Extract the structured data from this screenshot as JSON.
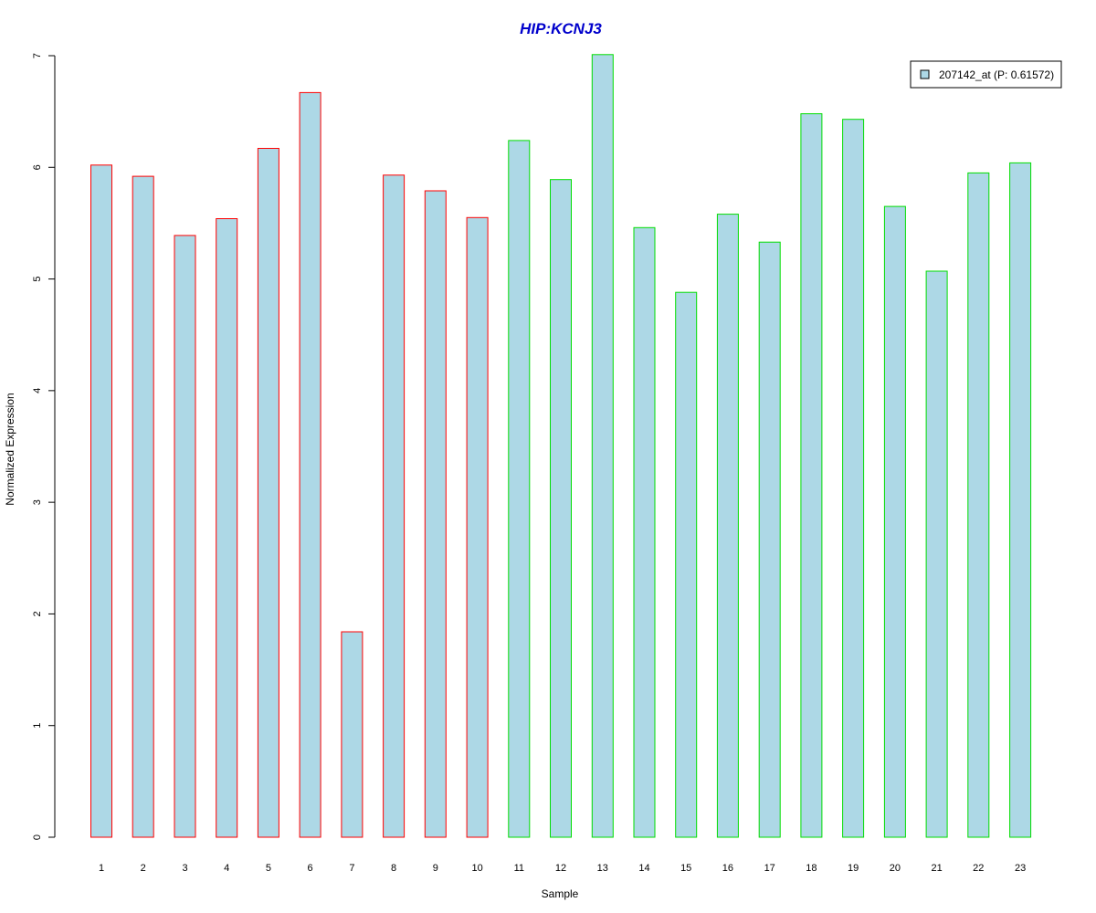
{
  "colors": {
    "title": "#0000cc",
    "bar_fill": "#add8e6",
    "group1_border": "#ff0000",
    "group2_border": "#00dd00",
    "axis": "#000000"
  },
  "chart_data": {
    "type": "bar",
    "title": "HIP:KCNJ3",
    "xlabel": "Sample",
    "ylabel": "Normalized Expression",
    "ylim": [
      0,
      7
    ],
    "yticks": [
      0,
      1,
      2,
      3,
      4,
      5,
      6,
      7
    ],
    "grid": false,
    "legend_position": "top-right",
    "categories": [
      "1",
      "2",
      "3",
      "4",
      "5",
      "6",
      "7",
      "8",
      "9",
      "10",
      "11",
      "12",
      "13",
      "14",
      "15",
      "16",
      "17",
      "18",
      "19",
      "20",
      "21",
      "22",
      "23"
    ],
    "series": [
      {
        "name": "207142_at (P: 0.61572)",
        "values": [
          6.02,
          5.92,
          5.39,
          5.54,
          6.17,
          6.67,
          1.84,
          5.93,
          5.79,
          5.55,
          6.24,
          5.89,
          7.01,
          5.46,
          4.88,
          5.58,
          5.33,
          6.48,
          6.43,
          5.65,
          5.07,
          5.95,
          6.04
        ],
        "groups": [
          1,
          1,
          1,
          1,
          1,
          1,
          1,
          1,
          1,
          1,
          2,
          2,
          2,
          2,
          2,
          2,
          2,
          2,
          2,
          2,
          2,
          2,
          2
        ]
      }
    ]
  }
}
